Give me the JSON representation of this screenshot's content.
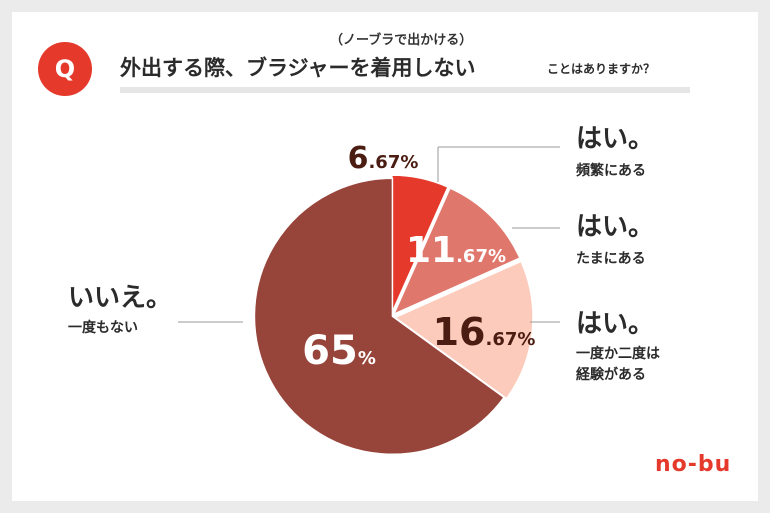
{
  "question": {
    "badge": "Q",
    "subtitle": "（ノーブラで出かける）",
    "main": "外出する際、ブラジャーを着用しない",
    "tail": "ことはありますか？"
  },
  "logo": "no-bu",
  "answers": [
    {
      "title": "はい。",
      "sub": "頻繁にある"
    },
    {
      "title": "はい。",
      "sub": "たまにある"
    },
    {
      "title": "はい。",
      "sub": "一度か二度は\n経験がある"
    },
    {
      "title": "いいえ。",
      "sub": "一度もない"
    }
  ],
  "chart_data": {
    "type": "pie",
    "categories": [
      "はい。頻繁にある",
      "はい。たまにある",
      "はい。一度か二度は経験がある",
      "いいえ。一度もない"
    ],
    "values": [
      6.67,
      11.67,
      16.67,
      65
    ],
    "labels": [
      "6.67%",
      "11.67%",
      "16.67%",
      "65%"
    ],
    "colors": [
      "#e5392b",
      "#e0776d",
      "#fccbbb",
      "#97443a"
    ],
    "label_colors": [
      "#4a1c12",
      "#ffffff",
      "#4a1c12",
      "#ffffff"
    ]
  }
}
